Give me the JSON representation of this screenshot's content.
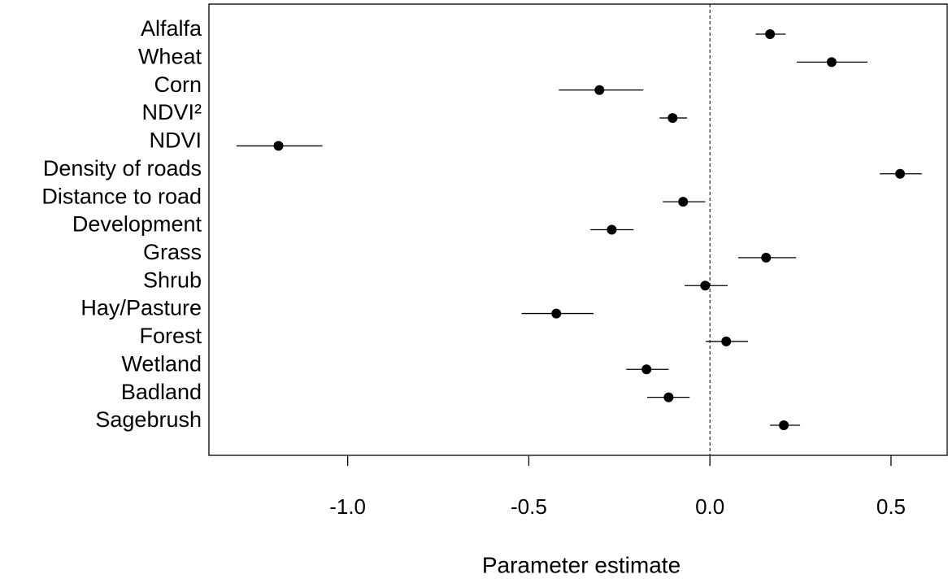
{
  "chart_data": {
    "type": "coefficient",
    "x_label": "Parameter estimate",
    "categories": [
      "Alfalfa",
      "Wheat",
      "Corn",
      "NDVI²",
      "NDVI",
      "Density of roads",
      "Distance to road",
      "Development",
      "Grass",
      "Shrub",
      "Hay/Pasture",
      "Forest",
      "Wetland",
      "Badland",
      "Sagebrush"
    ],
    "values": [
      0.166,
      0.336,
      -0.305,
      -0.103,
      -1.191,
      0.525,
      -0.074,
      -0.271,
      0.155,
      -0.013,
      -0.424,
      0.045,
      -0.175,
      -0.114,
      0.204
    ],
    "lower": [
      0.126,
      0.24,
      -0.417,
      -0.139,
      -1.307,
      0.469,
      -0.13,
      -0.33,
      0.078,
      -0.07,
      -0.52,
      -0.011,
      -0.231,
      -0.173,
      0.166
    ],
    "upper": [
      0.209,
      0.435,
      -0.184,
      -0.063,
      -1.07,
      0.585,
      -0.013,
      -0.211,
      0.238,
      0.049,
      -0.321,
      0.105,
      -0.114,
      -0.056,
      0.249
    ],
    "color": "#000000",
    "xlim": [
      -1.383,
      0.655
    ],
    "xticks": [
      {
        "value": -1,
        "label": "-1.0"
      },
      -0.5,
      {
        "value": 0,
        "label": "0.0"
      },
      0.5
    ],
    "reference_line": 0
  }
}
